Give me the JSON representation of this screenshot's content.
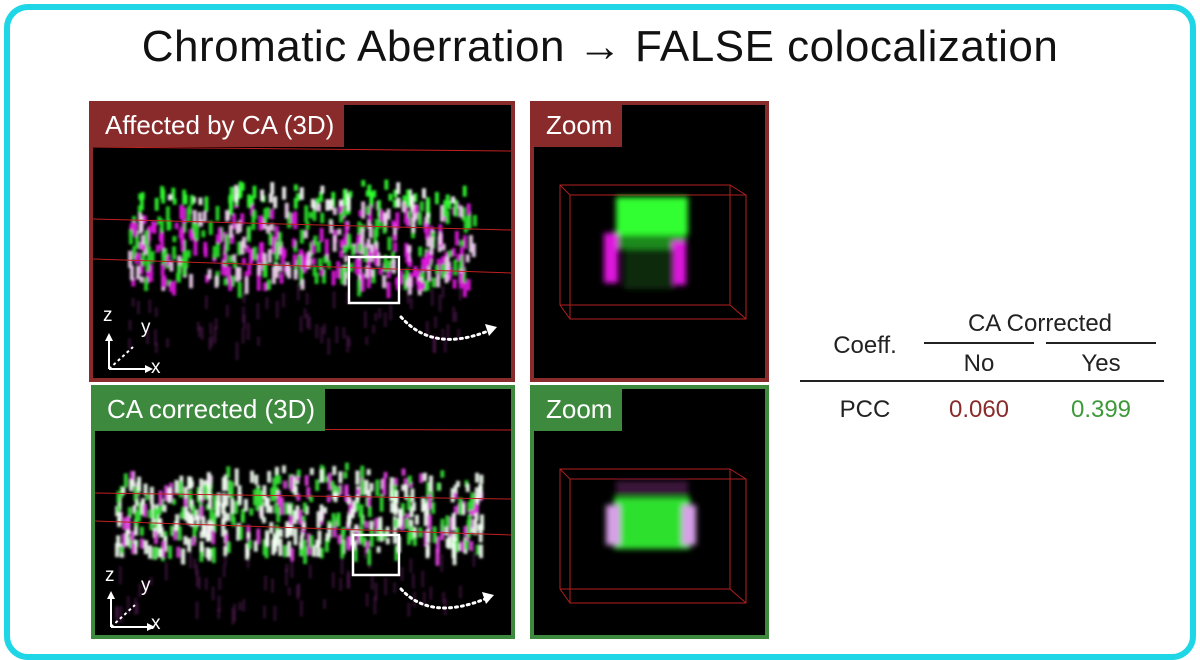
{
  "title": "Chromatic Aberration → FALSE colocalization",
  "panels": {
    "top_main_label": "Affected by CA (3D)",
    "top_zoom_label": "Zoom",
    "bottom_main_label": "CA corrected (3D)",
    "bottom_zoom_label": "Zoom",
    "axis_z": "z",
    "axis_y": "y",
    "axis_x": "x"
  },
  "table": {
    "group_header": "CA Corrected",
    "row_header": "Coeff.",
    "col_no": "No",
    "col_yes": "Yes",
    "rows": [
      {
        "label": "PCC",
        "no": "0.060",
        "yes": "0.399"
      }
    ]
  },
  "colors": {
    "frame": "#1fd6e6",
    "uncorrected": "#8a2b2b",
    "corrected": "#3d8a3f",
    "value_no": "#8a2b2b",
    "value_yes": "#3d9a3a"
  }
}
